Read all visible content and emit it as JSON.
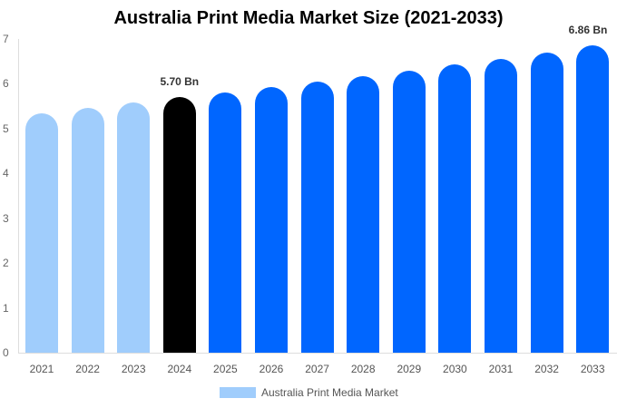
{
  "chart_data": {
    "type": "bar",
    "title": "Australia Print Media Market Size (2021-2033)",
    "xlabel": "",
    "ylabel": "",
    "ylim": [
      0,
      7
    ],
    "yticks": [
      0,
      1,
      2,
      3,
      4,
      5,
      6,
      7
    ],
    "categories": [
      "2021",
      "2022",
      "2023",
      "2024",
      "2025",
      "2026",
      "2027",
      "2028",
      "2029",
      "2030",
      "2031",
      "2032",
      "2033"
    ],
    "series": [
      {
        "name": "Australia Print Media Market",
        "values": [
          5.34,
          5.47,
          5.59,
          5.7,
          5.81,
          5.93,
          6.04,
          6.17,
          6.3,
          6.43,
          6.56,
          6.7,
          6.86
        ]
      }
    ],
    "bar_colors": [
      "#a0cdfc",
      "#a0cdfc",
      "#a0cdfc",
      "#000000",
      "#0066ff",
      "#0066ff",
      "#0066ff",
      "#0066ff",
      "#0066ff",
      "#0066ff",
      "#0066ff",
      "#0066ff",
      "#0066ff"
    ],
    "annotations": [
      {
        "category": "2024",
        "text": "5.70 Bn"
      },
      {
        "category": "2033",
        "text": "6.86 Bn"
      }
    ],
    "legend": {
      "position": "bottom",
      "entries": [
        "Australia Print Media Market"
      ]
    },
    "grid": false
  }
}
